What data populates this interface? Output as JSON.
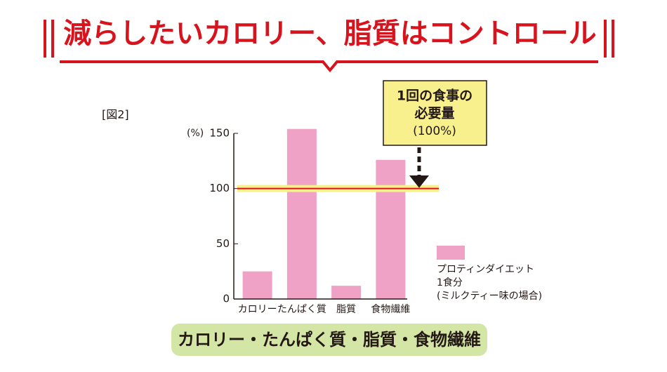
{
  "chart_data": {
    "type": "bar",
    "title": "減らしたいカロリー、脂質はコントロール",
    "figure_label": "[図2]",
    "y_label": "(%)",
    "categories": [
      "カロリー",
      "たんぱく質",
      "脂質",
      "食物繊維"
    ],
    "series": [
      {
        "name": "プロティンダイエット\n1食分\n(ミルクティー味の場合)",
        "color": "#f0a1c6",
        "values": [
          25,
          154,
          12,
          126
        ]
      }
    ],
    "ylim": [
      0,
      150
    ],
    "yticks": [
      0,
      50,
      100,
      150
    ],
    "reference_line": 100,
    "reference_label": [
      "1回の食事の",
      "必要量",
      "(100%)"
    ],
    "caption": "カロリー・たんぱく質・脂質・食物繊維"
  }
}
